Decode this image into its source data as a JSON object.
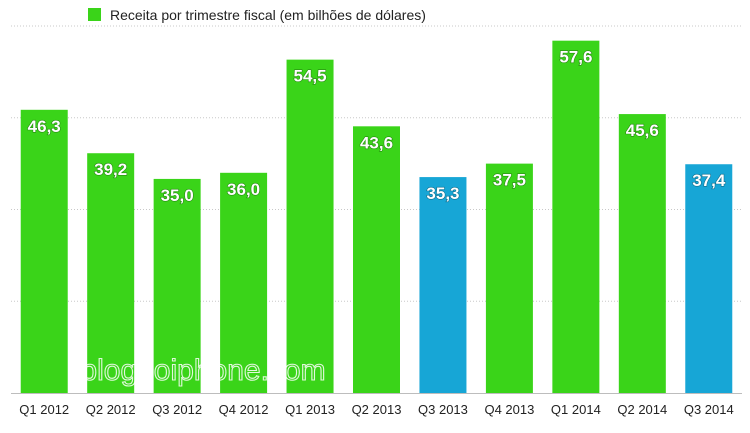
{
  "chart_data": {
    "type": "bar",
    "legend": {
      "label": "Receita por trimestre fiscal (em bilhões de dólares)",
      "color": "#3ad419",
      "placement": "top"
    },
    "categories": [
      "Q1 2012",
      "Q2 2012",
      "Q3 2012",
      "Q4 2012",
      "Q1 2013",
      "Q2 2013",
      "Q3 2013",
      "Q4 2013",
      "Q1 2014",
      "Q2 2014",
      "Q3 2014"
    ],
    "values": [
      46.3,
      39.2,
      35.0,
      36.0,
      54.5,
      43.6,
      35.3,
      37.5,
      57.6,
      45.6,
      37.4
    ],
    "value_labels": [
      "46,3",
      "39,2",
      "35,0",
      "36,0",
      "54,5",
      "43,6",
      "35,3",
      "37,5",
      "57,6",
      "45,6",
      "37,4"
    ],
    "highlighted_categories": [
      "Q3 2013",
      "Q3 2014"
    ],
    "colors": {
      "default": "#3ad419",
      "highlight": "#17a6d6"
    },
    "ylim": [
      0,
      60
    ],
    "y_gridlines": [
      15,
      30,
      45,
      60
    ],
    "grid": "horizontal-dotted",
    "xlabel": "",
    "ylabel": ""
  },
  "watermark": "blogdoiphone.com"
}
